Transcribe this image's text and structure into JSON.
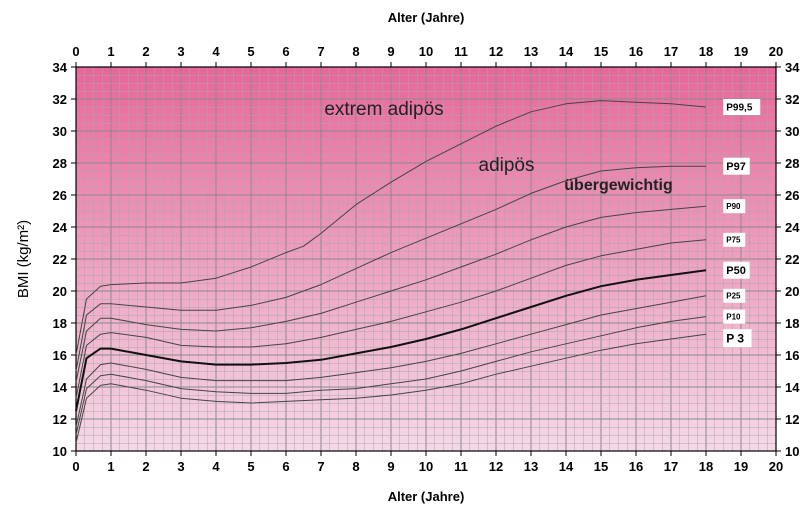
{
  "chart_data": {
    "type": "line",
    "xlabel_top": "Alter (Jahre)",
    "xlabel_bottom": "Alter (Jahre)",
    "ylabel": "BMI (kg/m²)",
    "xlim": [
      0,
      20
    ],
    "ylim": [
      10,
      34
    ],
    "x_ticks": [
      "0",
      "1",
      "2",
      "3",
      "4",
      "5",
      "6",
      "7",
      "8",
      "9",
      "10",
      "11",
      "12",
      "13",
      "14",
      "15",
      "16",
      "17",
      "18",
      "19",
      "20"
    ],
    "y_ticks": [
      "10",
      "12",
      "14",
      "16",
      "18",
      "20",
      "22",
      "24",
      "26",
      "28",
      "30",
      "32",
      "34"
    ],
    "grid": true,
    "background_gradient": [
      "#e8669a",
      "#f5d9e6"
    ],
    "zone_labels": [
      {
        "text": "extrem adipös",
        "x": 8.8,
        "y": 31.0
      },
      {
        "text": "adipös",
        "x": 12.3,
        "y": 27.5
      },
      {
        "text": "übergewichtig",
        "x": 15.5,
        "y": 26.3
      }
    ],
    "series": [
      {
        "name": "P 3",
        "label_size": 12,
        "width": 1,
        "points": [
          [
            0,
            10.5
          ],
          [
            0.3,
            13.3
          ],
          [
            0.7,
            14.1
          ],
          [
            1,
            14.2
          ],
          [
            2,
            13.8
          ],
          [
            3,
            13.3
          ],
          [
            4,
            13.1
          ],
          [
            5,
            13.0
          ],
          [
            6,
            13.1
          ],
          [
            7,
            13.2
          ],
          [
            8,
            13.3
          ],
          [
            9,
            13.5
          ],
          [
            10,
            13.8
          ],
          [
            11,
            14.2
          ],
          [
            12,
            14.8
          ],
          [
            13,
            15.3
          ],
          [
            14,
            15.8
          ],
          [
            15,
            16.3
          ],
          [
            16,
            16.7
          ],
          [
            17,
            17.0
          ],
          [
            18,
            17.3
          ]
        ]
      },
      {
        "name": "P10",
        "label_size": 8,
        "width": 1,
        "points": [
          [
            0,
            11.0
          ],
          [
            0.3,
            13.9
          ],
          [
            0.7,
            14.7
          ],
          [
            1,
            14.8
          ],
          [
            2,
            14.4
          ],
          [
            3,
            13.9
          ],
          [
            4,
            13.7
          ],
          [
            5,
            13.6
          ],
          [
            6,
            13.6
          ],
          [
            7,
            13.8
          ],
          [
            8,
            13.9
          ],
          [
            9,
            14.2
          ],
          [
            10,
            14.5
          ],
          [
            11,
            15.0
          ],
          [
            12,
            15.6
          ],
          [
            13,
            16.2
          ],
          [
            14,
            16.7
          ],
          [
            15,
            17.2
          ],
          [
            16,
            17.7
          ],
          [
            17,
            18.1
          ],
          [
            18,
            18.4
          ]
        ]
      },
      {
        "name": "P25",
        "label_size": 8,
        "width": 1,
        "points": [
          [
            0,
            11.5
          ],
          [
            0.3,
            14.5
          ],
          [
            0.7,
            15.4
          ],
          [
            1,
            15.5
          ],
          [
            2,
            15.1
          ],
          [
            3,
            14.6
          ],
          [
            4,
            14.4
          ],
          [
            5,
            14.4
          ],
          [
            6,
            14.4
          ],
          [
            7,
            14.6
          ],
          [
            8,
            14.9
          ],
          [
            9,
            15.2
          ],
          [
            10,
            15.6
          ],
          [
            11,
            16.1
          ],
          [
            12,
            16.7
          ],
          [
            13,
            17.3
          ],
          [
            14,
            17.9
          ],
          [
            15,
            18.5
          ],
          [
            16,
            18.9
          ],
          [
            17,
            19.3
          ],
          [
            18,
            19.7
          ]
        ]
      },
      {
        "name": "P50",
        "label_size": 11,
        "width": 2,
        "points": [
          [
            0,
            12.5
          ],
          [
            0.3,
            15.8
          ],
          [
            0.7,
            16.4
          ],
          [
            1,
            16.4
          ],
          [
            2,
            16.0
          ],
          [
            3,
            15.6
          ],
          [
            4,
            15.4
          ],
          [
            5,
            15.4
          ],
          [
            6,
            15.5
          ],
          [
            7,
            15.7
          ],
          [
            8,
            16.1
          ],
          [
            9,
            16.5
          ],
          [
            10,
            17.0
          ],
          [
            11,
            17.6
          ],
          [
            12,
            18.3
          ],
          [
            13,
            19.0
          ],
          [
            14,
            19.7
          ],
          [
            15,
            20.3
          ],
          [
            16,
            20.7
          ],
          [
            17,
            21.0
          ],
          [
            18,
            21.3
          ]
        ]
      },
      {
        "name": "P75",
        "label_size": 8,
        "width": 1,
        "points": [
          [
            0,
            13.3
          ],
          [
            0.3,
            16.6
          ],
          [
            0.7,
            17.3
          ],
          [
            1,
            17.4
          ],
          [
            2,
            17.1
          ],
          [
            3,
            16.6
          ],
          [
            4,
            16.5
          ],
          [
            5,
            16.5
          ],
          [
            6,
            16.7
          ],
          [
            7,
            17.1
          ],
          [
            8,
            17.6
          ],
          [
            9,
            18.1
          ],
          [
            10,
            18.7
          ],
          [
            11,
            19.3
          ],
          [
            12,
            20.0
          ],
          [
            13,
            20.8
          ],
          [
            14,
            21.6
          ],
          [
            15,
            22.2
          ],
          [
            16,
            22.6
          ],
          [
            17,
            23.0
          ],
          [
            18,
            23.2
          ]
        ]
      },
      {
        "name": "P90",
        "label_size": 8,
        "width": 1,
        "points": [
          [
            0,
            14.3
          ],
          [
            0.3,
            17.5
          ],
          [
            0.7,
            18.3
          ],
          [
            1,
            18.3
          ],
          [
            2,
            17.9
          ],
          [
            3,
            17.6
          ],
          [
            4,
            17.5
          ],
          [
            5,
            17.7
          ],
          [
            6,
            18.1
          ],
          [
            7,
            18.6
          ],
          [
            8,
            19.3
          ],
          [
            9,
            20.0
          ],
          [
            10,
            20.7
          ],
          [
            11,
            21.5
          ],
          [
            12,
            22.3
          ],
          [
            13,
            23.2
          ],
          [
            14,
            24.0
          ],
          [
            15,
            24.6
          ],
          [
            16,
            24.9
          ],
          [
            17,
            25.1
          ],
          [
            18,
            25.3
          ]
        ]
      },
      {
        "name": "P97",
        "label_size": 11,
        "width": 1,
        "points": [
          [
            0,
            15.0
          ],
          [
            0.3,
            18.5
          ],
          [
            0.7,
            19.2
          ],
          [
            1,
            19.2
          ],
          [
            2,
            19.0
          ],
          [
            3,
            18.8
          ],
          [
            4,
            18.8
          ],
          [
            5,
            19.1
          ],
          [
            6,
            19.6
          ],
          [
            7,
            20.4
          ],
          [
            8,
            21.4
          ],
          [
            9,
            22.4
          ],
          [
            10,
            23.3
          ],
          [
            11,
            24.2
          ],
          [
            12,
            25.1
          ],
          [
            13,
            26.1
          ],
          [
            14,
            26.9
          ],
          [
            15,
            27.5
          ],
          [
            16,
            27.7
          ],
          [
            17,
            27.8
          ],
          [
            18,
            27.8
          ]
        ]
      },
      {
        "name": "P99,5",
        "label_size": 10,
        "width": 1,
        "points": [
          [
            0,
            16.0
          ],
          [
            0.3,
            19.5
          ],
          [
            0.7,
            20.3
          ],
          [
            1,
            20.4
          ],
          [
            2,
            20.5
          ],
          [
            3,
            20.5
          ],
          [
            4,
            20.8
          ],
          [
            5,
            21.5
          ],
          [
            6,
            22.4
          ],
          [
            6.5,
            22.8
          ],
          [
            7,
            23.6
          ],
          [
            8,
            25.4
          ],
          [
            9,
            26.8
          ],
          [
            10,
            28.1
          ],
          [
            11,
            29.2
          ],
          [
            12,
            30.3
          ],
          [
            13,
            31.2
          ],
          [
            14,
            31.7
          ],
          [
            15,
            31.9
          ],
          [
            16,
            31.8
          ],
          [
            17,
            31.7
          ],
          [
            18,
            31.5
          ]
        ]
      }
    ]
  }
}
